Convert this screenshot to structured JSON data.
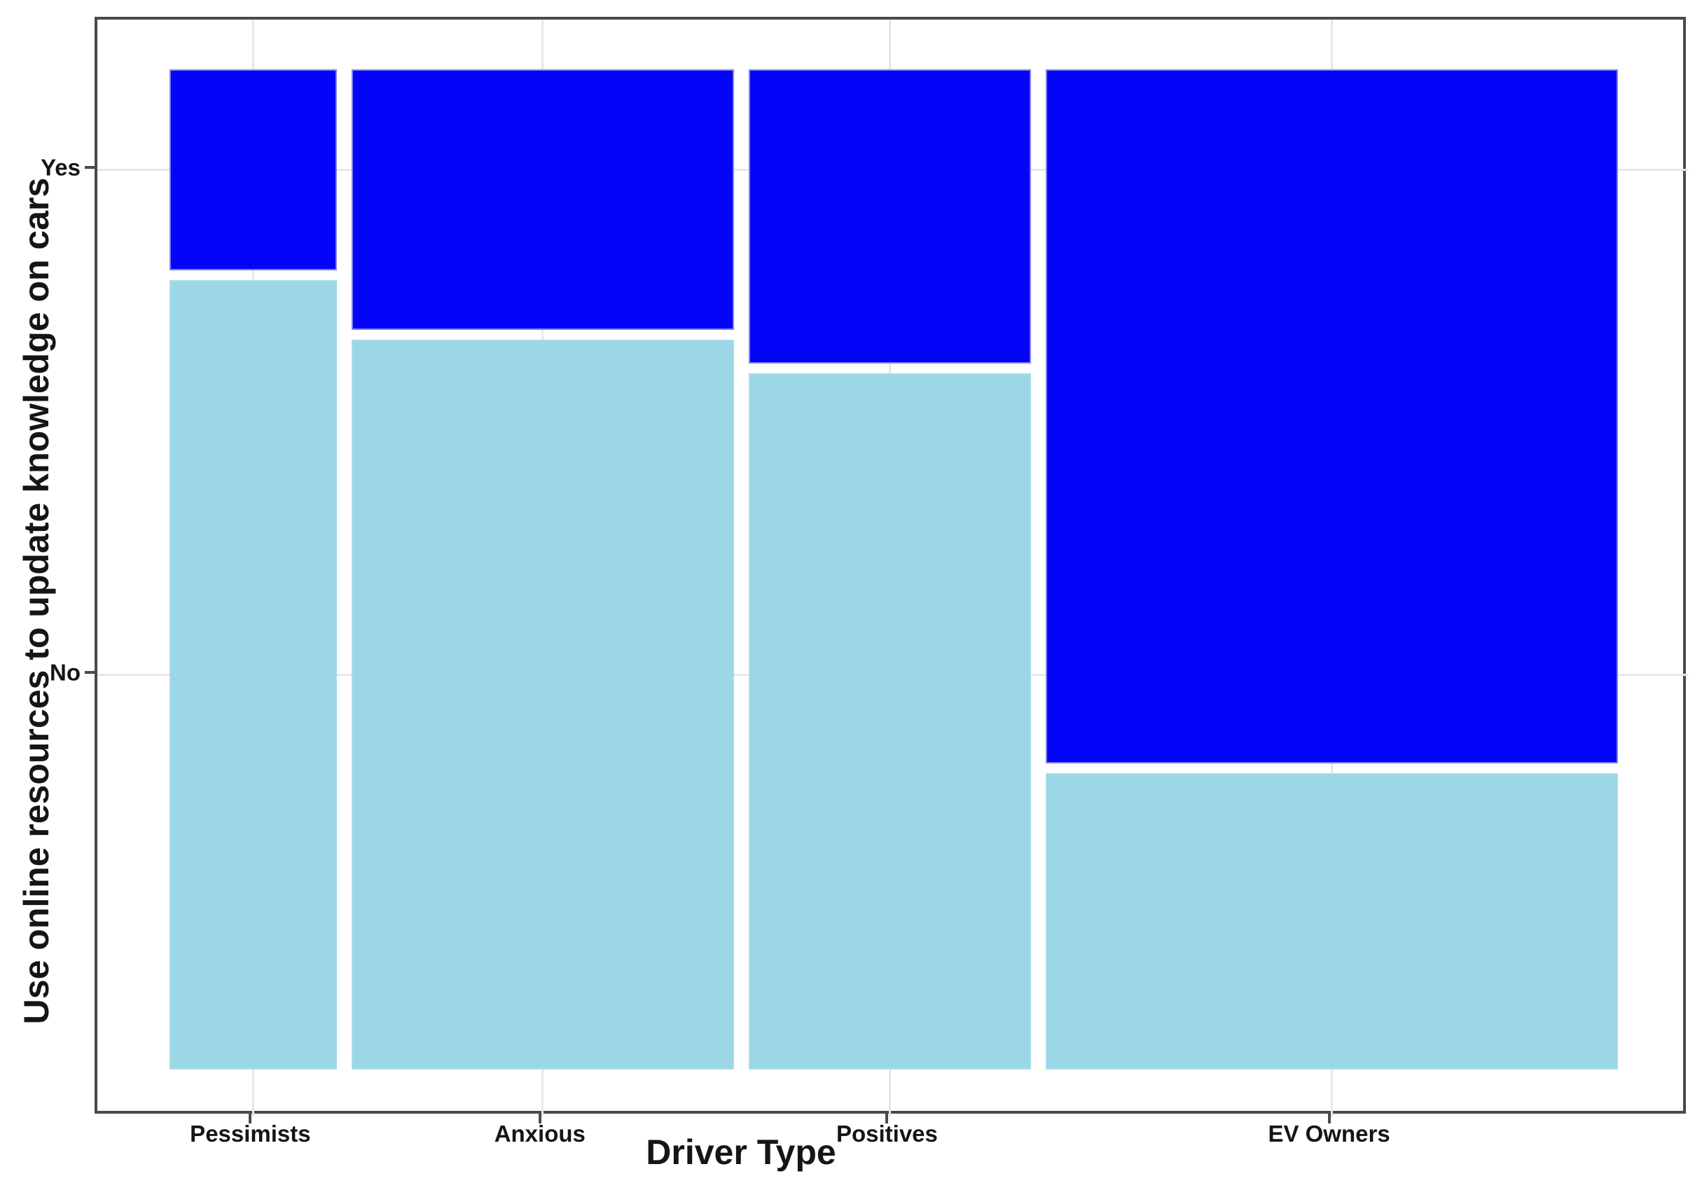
{
  "chart_data": {
    "type": "mosaic",
    "title": "",
    "xlabel": "Driver Type",
    "ylabel": "Use online resources to update knowledge on cars",
    "x_categories": [
      "Pessimists",
      "Anxious",
      "Positives",
      "EV Owners"
    ],
    "y_categories": [
      "Yes",
      "No"
    ],
    "columns": [
      {
        "label": "Pessimists",
        "width_share": 0.119,
        "yes_share": 0.203
      },
      {
        "label": "Anxious",
        "width_share": 0.272,
        "yes_share": 0.263
      },
      {
        "label": "Positives",
        "width_share": 0.201,
        "yes_share": 0.297
      },
      {
        "label": "EV Owners",
        "width_share": 0.407,
        "yes_share": 0.701
      }
    ],
    "colors": {
      "yes_fill": "#0404f8",
      "yes_edge": "#8080f2",
      "no_fill": "#9cd7e8",
      "no_edge": "#aadcea",
      "grid": "#e7e7e7",
      "panel_border": "#4a4a4a",
      "text": "#151515",
      "background": "#ffffff"
    },
    "grid": "on",
    "legend_position": "none",
    "x_axis_tick_side": "bottom",
    "y_axis_tick_side": "left"
  }
}
